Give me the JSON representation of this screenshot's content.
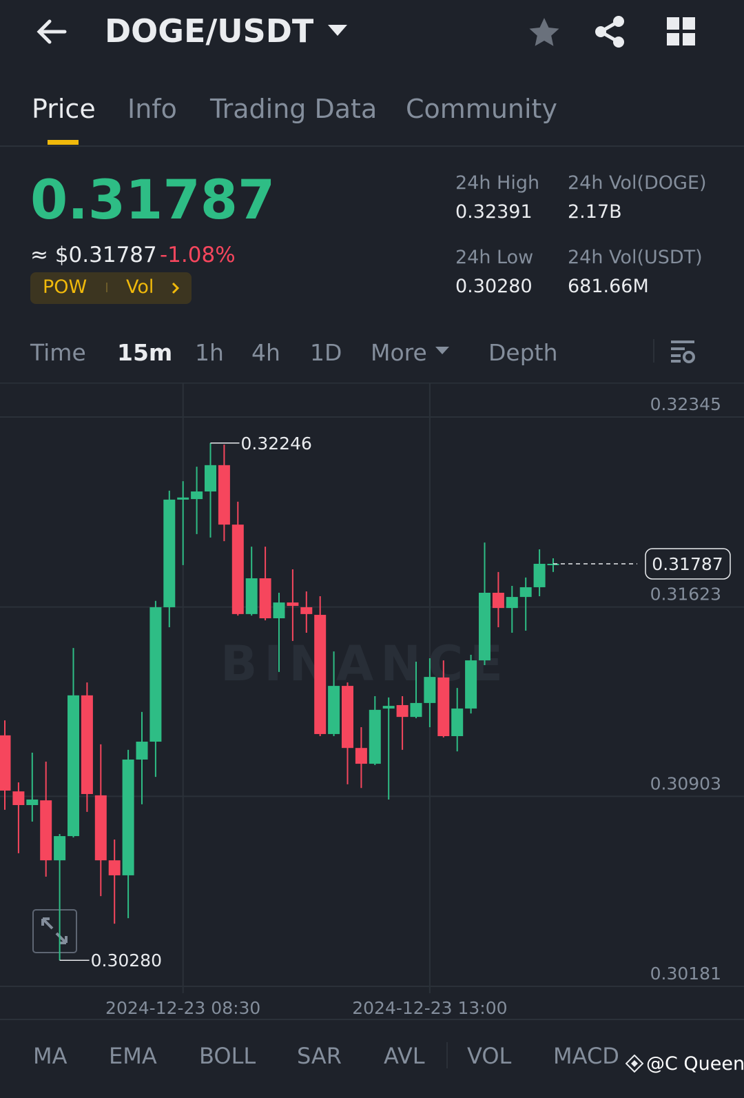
{
  "header": {
    "pair": "DOGE/USDT"
  },
  "tabs": [
    "Price",
    "Info",
    "Trading Data",
    "Community"
  ],
  "ticker": {
    "price": "0.31787",
    "usd": "≈ $0.31787",
    "change": "-1.08%",
    "tags": [
      "POW",
      "Vol"
    ]
  },
  "stats": [
    {
      "label": "24h High",
      "value": "0.32391"
    },
    {
      "label": "24h Vol(DOGE)",
      "value": "2.17B"
    },
    {
      "label": "24h Low",
      "value": "0.30280"
    },
    {
      "label": "24h Vol(USDT)",
      "value": "681.66M"
    }
  ],
  "intervals": [
    "Time",
    "15m",
    "1h",
    "4h",
    "1D",
    "More",
    "Depth"
  ],
  "chart_data": {
    "type": "candlestick",
    "watermark": "BINANCE",
    "categories": [
      null,
      null,
      null,
      null,
      null,
      null,
      null,
      null,
      null,
      null,
      null,
      null,
      null,
      "2024-12-23 08:30",
      null,
      null,
      null,
      null,
      null,
      null,
      null,
      null,
      null,
      null,
      null,
      null,
      null,
      null,
      null,
      null,
      null,
      "2024-12-23 13:00",
      null,
      null,
      null,
      null,
      null,
      null,
      null,
      null,
      null
    ],
    "open": [
      0.31135,
      0.30922,
      0.3087,
      0.30888,
      0.3066,
      0.30752,
      0.31287,
      0.30907,
      0.3066,
      0.30603,
      0.31043,
      0.31111,
      0.31622,
      0.32031,
      0.32033,
      0.32062,
      0.32162,
      0.31936,
      0.31596,
      0.31732,
      0.3158,
      0.3164,
      0.31622,
      0.31593,
      0.3114,
      0.31323,
      0.31087,
      0.31027,
      0.31237,
      0.3125,
      0.31205,
      0.31258,
      0.31355,
      0.31132,
      0.31237,
      0.3142,
      0.31677,
      0.31619,
      0.31661,
      0.31698,
      0.31787
    ],
    "high": [
      0.31192,
      0.30956,
      0.31069,
      0.31035,
      0.3076,
      0.31467,
      0.31336,
      0.31101,
      0.30739,
      0.3108,
      0.31224,
      0.31646,
      0.32065,
      0.32101,
      0.32156,
      0.32246,
      0.3224,
      0.32023,
      0.31852,
      0.31852,
      0.31677,
      0.31766,
      0.31682,
      0.31664,
      0.31454,
      0.31336,
      0.31166,
      0.31284,
      0.31279,
      0.31284,
      0.31415,
      0.31428,
      0.3142,
      0.31315,
      0.31441,
      0.31868,
      0.31756,
      0.31703,
      0.31735,
      0.31842,
      0.31808
    ],
    "low": [
      0.30852,
      0.30687,
      0.30807,
      0.30598,
      0.3028,
      0.30747,
      0.30844,
      0.30524,
      0.30419,
      0.3044,
      0.30873,
      0.30977,
      0.31546,
      0.31782,
      0.319,
      0.31887,
      0.31873,
      0.3159,
      0.3159,
      0.31572,
      0.31376,
      0.31494,
      0.31525,
      0.31132,
      0.31132,
      0.30949,
      0.30935,
      0.31022,
      0.30891,
      0.3108,
      0.312,
      0.31166,
      0.31127,
      0.31074,
      0.31218,
      0.31402,
      0.31546,
      0.31525,
      0.31533,
      0.31664,
      0.31756
    ],
    "close": [
      0.30925,
      0.3087,
      0.30891,
      0.3066,
      0.30752,
      0.31287,
      0.30912,
      0.3066,
      0.30603,
      0.31043,
      0.31111,
      0.31622,
      0.32031,
      0.32039,
      0.32062,
      0.32162,
      0.31936,
      0.31596,
      0.31732,
      0.3158,
      0.3164,
      0.31627,
      0.31596,
      0.3114,
      0.31323,
      0.31087,
      0.31027,
      0.31232,
      0.31247,
      0.31205,
      0.31258,
      0.31357,
      0.31132,
      0.31237,
      0.3142,
      0.31677,
      0.31619,
      0.31661,
      0.31698,
      0.31787,
      0.31787
    ],
    "up_color": "#2ebd85",
    "down_color": "#f6465d",
    "ylim": [
      0.30181,
      0.32476
    ],
    "yticks": [
      0.32345,
      0.31623,
      0.30903,
      0.30181
    ],
    "grid": true,
    "max_label": 0.32246,
    "min_label": {
      "value": 0.3028,
      "label": "0.30280"
    },
    "last_price": 0.31787
  },
  "indicators": [
    "MA",
    "EMA",
    "BOLL",
    "SAR",
    "AVL",
    "VOL",
    "MACD"
  ],
  "watermark": "@C Queen"
}
